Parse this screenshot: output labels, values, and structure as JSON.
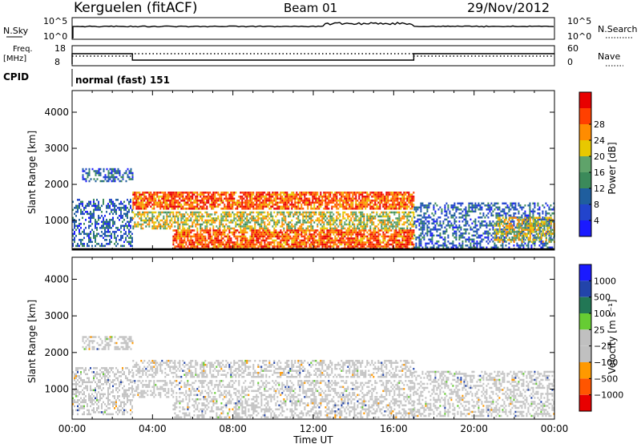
{
  "header": {
    "station": "Kerguelen (fitACF)",
    "beam": "Beam 01",
    "date": "29/Nov/2012"
  },
  "summary": {
    "nsky_label": "N.Sky",
    "nsky_ticks": [
      "10^5",
      "10^0"
    ],
    "nsearch_label": "N.Search",
    "nsearch_ticks": [
      "10^5",
      "10^0"
    ],
    "freq_label_1": "Freq.",
    "freq_label_2": "[MHz]",
    "freq_ticks": [
      "18",
      "8"
    ],
    "nave_label": "Nave",
    "nave_ticks": [
      "60",
      "0"
    ],
    "cpid_label": "CPID",
    "cpid_text": "normal (fast) 151"
  },
  "colors": {
    "power_scale": [
      "#1a1aff",
      "#2244cc",
      "#1f5e9e",
      "#3b8a5a",
      "#5fa36a",
      "#e8c800",
      "#ff8c00",
      "#ff4000",
      "#e80000"
    ],
    "velocity_scale": [
      "#1a1aff",
      "#2244aa",
      "#227755",
      "#66cc33",
      "#c0c0c0",
      "#c0c0c0",
      "#ff9900",
      "#ff5500",
      "#e80000"
    ]
  },
  "chart_data": [
    {
      "type": "heatmap",
      "panel": "power",
      "xlabel": "",
      "ylabel": "Slant Range [km]",
      "x_ticks": [
        "00:00",
        "04:00",
        "08:00",
        "12:00",
        "16:00",
        "20:00",
        "00:00"
      ],
      "y_ticks": [
        "1000",
        "2000",
        "3000",
        "4000"
      ],
      "xlim": [
        0,
        24
      ],
      "ylim": [
        180,
        4600
      ],
      "colorbar_label": "Power [dB]",
      "colorbar_ticks": [
        "4",
        "8",
        "12",
        "16",
        "20",
        "24",
        "28"
      ],
      "bands": [
        {
          "t": [
            0.0,
            3.0
          ],
          "r": [
            300,
            1600
          ],
          "level": "low"
        },
        {
          "t": [
            0.5,
            3.0
          ],
          "r": [
            2100,
            2450
          ],
          "level": "low"
        },
        {
          "t": [
            3.0,
            17.0
          ],
          "r": [
            1350,
            1800
          ],
          "level": "high"
        },
        {
          "t": [
            3.0,
            17.0
          ],
          "r": [
            800,
            1250
          ],
          "level": "mid"
        },
        {
          "t": [
            5.0,
            17.0
          ],
          "r": [
            250,
            750
          ],
          "level": "high"
        },
        {
          "t": [
            17.0,
            24.0
          ],
          "r": [
            250,
            1500
          ],
          "level": "low"
        },
        {
          "t": [
            21.0,
            24.0
          ],
          "r": [
            400,
            1100
          ],
          "level": "mid"
        }
      ]
    },
    {
      "type": "heatmap",
      "panel": "velocity",
      "xlabel": "Time UT",
      "ylabel": "Slant Range [km]",
      "x_ticks": [
        "00:00",
        "04:00",
        "08:00",
        "12:00",
        "16:00",
        "20:00",
        "00:00"
      ],
      "y_ticks": [
        "1000",
        "2000",
        "3000",
        "4000"
      ],
      "xlim": [
        0,
        24
      ],
      "ylim": [
        180,
        4600
      ],
      "colorbar_label": "Velocity [m s⁻¹]",
      "colorbar_ticks": [
        "1000",
        "500",
        "100",
        "25",
        "−25",
        "−100",
        "−500",
        "−1000"
      ],
      "bands": [
        {
          "t": [
            0.0,
            3.0
          ],
          "r": [
            300,
            1600
          ],
          "level": "gray"
        },
        {
          "t": [
            0.5,
            3.0
          ],
          "r": [
            2100,
            2450
          ],
          "level": "gray"
        },
        {
          "t": [
            3.0,
            17.0
          ],
          "r": [
            1350,
            1800
          ],
          "level": "gray"
        },
        {
          "t": [
            3.0,
            17.0
          ],
          "r": [
            800,
            1250
          ],
          "level": "gray"
        },
        {
          "t": [
            5.0,
            17.0
          ],
          "r": [
            250,
            750
          ],
          "level": "gray"
        },
        {
          "t": [
            17.0,
            24.0
          ],
          "r": [
            250,
            1500
          ],
          "level": "gray"
        }
      ]
    }
  ]
}
